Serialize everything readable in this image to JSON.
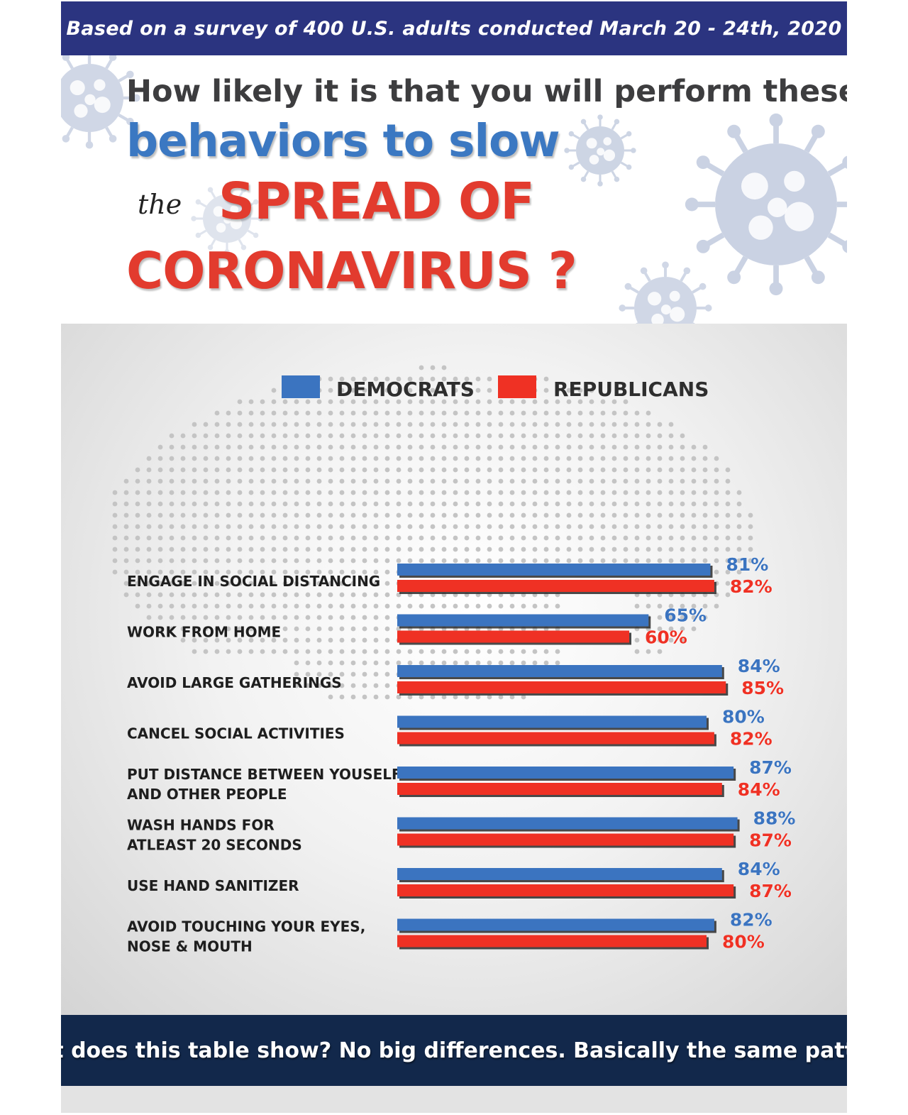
{
  "banner": {
    "text": "Based on a survey of 400 U.S. adults conducted March 20 - 24th, 2020"
  },
  "title": {
    "line1": "How likely it is that you will perform these",
    "line2": "behaviors to slow",
    "line3_prefix": "the",
    "line3_main": "SPREAD OF",
    "line4": "CORONAVIRUS ?"
  },
  "footer": {
    "text": "What does this table show? No big differences. Basically the same patterns"
  },
  "colors": {
    "democrats": "#3b74c0",
    "republicans": "#ef3124",
    "banner": "#2b3480",
    "footer": "#12284b"
  },
  "chart_data": {
    "type": "bar",
    "orientation": "horizontal",
    "categories": [
      [
        "ENGAGE IN SOCIAL DISTANCING"
      ],
      [
        "WORK FROM HOME"
      ],
      [
        "AVOID LARGE GATHERINGS"
      ],
      [
        "CANCEL SOCIAL ACTIVITIES"
      ],
      [
        "PUT DISTANCE BETWEEN YOUSELF",
        "AND OTHER PEOPLE"
      ],
      [
        "WASH HANDS FOR",
        "ATLEAST 20 SECONDS"
      ],
      [
        "USE HAND SANITIZER"
      ],
      [
        "AVOID TOUCHING YOUR EYES,",
        "NOSE & MOUTH"
      ]
    ],
    "series": [
      {
        "name": "DEMOCRATS",
        "color": "#3b74c0",
        "values": [
          81,
          65,
          84,
          80,
          87,
          88,
          84,
          82
        ],
        "labels": [
          "81%",
          "65%",
          "84%",
          "80%",
          "87%",
          "88%",
          "84%",
          "82%"
        ]
      },
      {
        "name": "REPUBLICANS",
        "color": "#ef3124",
        "values": [
          82,
          60,
          85,
          82,
          84,
          87,
          87,
          80
        ],
        "labels": [
          "82%",
          "60%",
          "85%",
          "82%",
          "84%",
          "87%",
          "87%",
          "80%"
        ]
      }
    ],
    "xlim": [
      0,
      100
    ],
    "legend": "top-center",
    "grid": false
  }
}
